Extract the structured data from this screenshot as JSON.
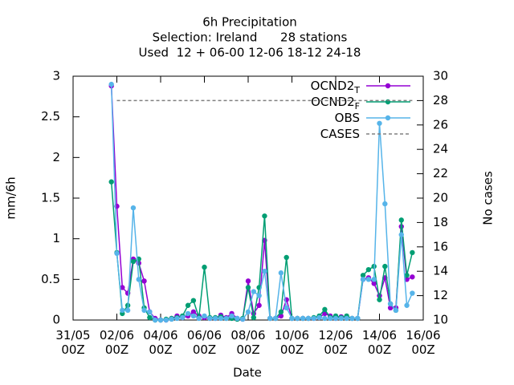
{
  "chart_data": {
    "type": "line",
    "title": [
      "6h Precipitation",
      "Selection: Ireland      28 stations",
      "Used  12 + 06-00 12-06 18-12 24-18"
    ],
    "xlabel": "Date",
    "ylabel": "mm/6h",
    "y2label": "No cases",
    "x": [
      1.75,
      2,
      2.25,
      2.5,
      2.75,
      3,
      3.25,
      3.5,
      3.75,
      4,
      4.25,
      4.5,
      4.75,
      5,
      5.25,
      5.5,
      5.75,
      6,
      6.25,
      6.5,
      6.75,
      7,
      7.25,
      7.5,
      7.75,
      8,
      8.25,
      8.5,
      8.75,
      9,
      9.25,
      9.5,
      9.75,
      10,
      10.25,
      10.5,
      10.75,
      11,
      11.25,
      11.5,
      11.75,
      12,
      12.25,
      12.5,
      12.75,
      13,
      13.25,
      13.5,
      13.75,
      14,
      14.25,
      14.5,
      14.75,
      15,
      15.25,
      15.5
    ],
    "xlim": [
      0,
      16
    ],
    "xticks": [
      {
        "value": 0,
        "label": "31/05\n00Z"
      },
      {
        "value": 2,
        "label": "02/06\n00Z"
      },
      {
        "value": 4,
        "label": "04/06\n00Z"
      },
      {
        "value": 6,
        "label": "06/06\n00Z"
      },
      {
        "value": 8,
        "label": "08/06\n00Z"
      },
      {
        "value": 10,
        "label": "10/06\n00Z"
      },
      {
        "value": 12,
        "label": "12/06\n00Z"
      },
      {
        "value": 14,
        "label": "14/06\n00Z"
      },
      {
        "value": 16,
        "label": "16/06\n00Z"
      }
    ],
    "ylim": [
      0,
      3
    ],
    "yticks": [
      0,
      0.5,
      1,
      1.5,
      2,
      2.5,
      3
    ],
    "y2lim": [
      10,
      30
    ],
    "y2ticks": [
      10,
      12,
      14,
      16,
      18,
      20,
      22,
      24,
      26,
      28,
      30
    ],
    "legend": "top-right",
    "series": [
      {
        "name": "OCND2",
        "subscript": "T",
        "color": "#9400d3",
        "markers": true,
        "values": [
          2.88,
          1.4,
          0.4,
          0.33,
          0.75,
          0.7,
          0.48,
          0.1,
          0.02,
          0,
          0,
          0.02,
          0.05,
          0.03,
          0.05,
          0.1,
          0.05,
          0.03,
          0.02,
          0.02,
          0.06,
          0.03,
          0.08,
          0.02,
          0.01,
          0.48,
          0.08,
          0.18,
          0.98,
          0.02,
          0.02,
          0.05,
          0.25,
          0.02,
          0.02,
          0.02,
          0.02,
          0.02,
          0.03,
          0.08,
          0.05,
          0.02,
          0.04,
          0.03,
          0.02,
          0.02,
          0.5,
          0.52,
          0.45,
          0.3,
          0.52,
          0.15,
          0.15,
          1.15,
          0.5,
          0.53
        ]
      },
      {
        "name": "OCND2",
        "subscript": "F",
        "color": "#009e73",
        "markers": true,
        "values": [
          1.7,
          0.83,
          0.08,
          0.18,
          0.72,
          0.75,
          0.15,
          0.03,
          0,
          0,
          0.01,
          0.02,
          0.03,
          0.05,
          0.18,
          0.24,
          0.03,
          0.65,
          0.03,
          0.03,
          0.04,
          0.02,
          0.02,
          0.01,
          0.02,
          0.4,
          0.03,
          0.4,
          1.28,
          0.02,
          0.02,
          0.1,
          0.77,
          0.02,
          0.02,
          0.02,
          0.02,
          0.03,
          0.05,
          0.13,
          0.03,
          0.05,
          0.03,
          0.05,
          0.02,
          0.02,
          0.55,
          0.62,
          0.66,
          0.25,
          0.66,
          0.2,
          0.12,
          1.23,
          0.55,
          0.83
        ]
      },
      {
        "name": "OBS",
        "color": "#56b4e9",
        "markers": true,
        "values": [
          2.9,
          0.82,
          0.12,
          0.12,
          1.38,
          0.5,
          0.12,
          0.1,
          0,
          0,
          0,
          0.01,
          0.02,
          0.03,
          0.08,
          0.05,
          0.02,
          0.05,
          0.02,
          0.02,
          0.02,
          0.02,
          0.05,
          0.02,
          0.01,
          0.1,
          0.35,
          0.3,
          0.6,
          0.02,
          0.02,
          0.58,
          0.15,
          0.02,
          0.02,
          0.02,
          0.02,
          0.02,
          0.03,
          0.02,
          0.02,
          0.02,
          0.02,
          0.02,
          0.02,
          0.02,
          0.5,
          0.5,
          0.5,
          2.42,
          1.43,
          0.2,
          0.12,
          1.05,
          0.18,
          0.33
        ]
      },
      {
        "name": "CASES",
        "color": "#808080",
        "markers": false,
        "dashed": true,
        "axis": "y2",
        "values": [
          null,
          28,
          28,
          28,
          28,
          28,
          28,
          28,
          28,
          28,
          28,
          28,
          28,
          28,
          28,
          28,
          28,
          28,
          28,
          28,
          28,
          28,
          28,
          28,
          28,
          28,
          28,
          28,
          28,
          28,
          28,
          28,
          28,
          28,
          28,
          28,
          28,
          28,
          28,
          28,
          28,
          28,
          28,
          28,
          28,
          28,
          28,
          28,
          28,
          28,
          28,
          28,
          28,
          28,
          28,
          28
        ]
      }
    ]
  }
}
